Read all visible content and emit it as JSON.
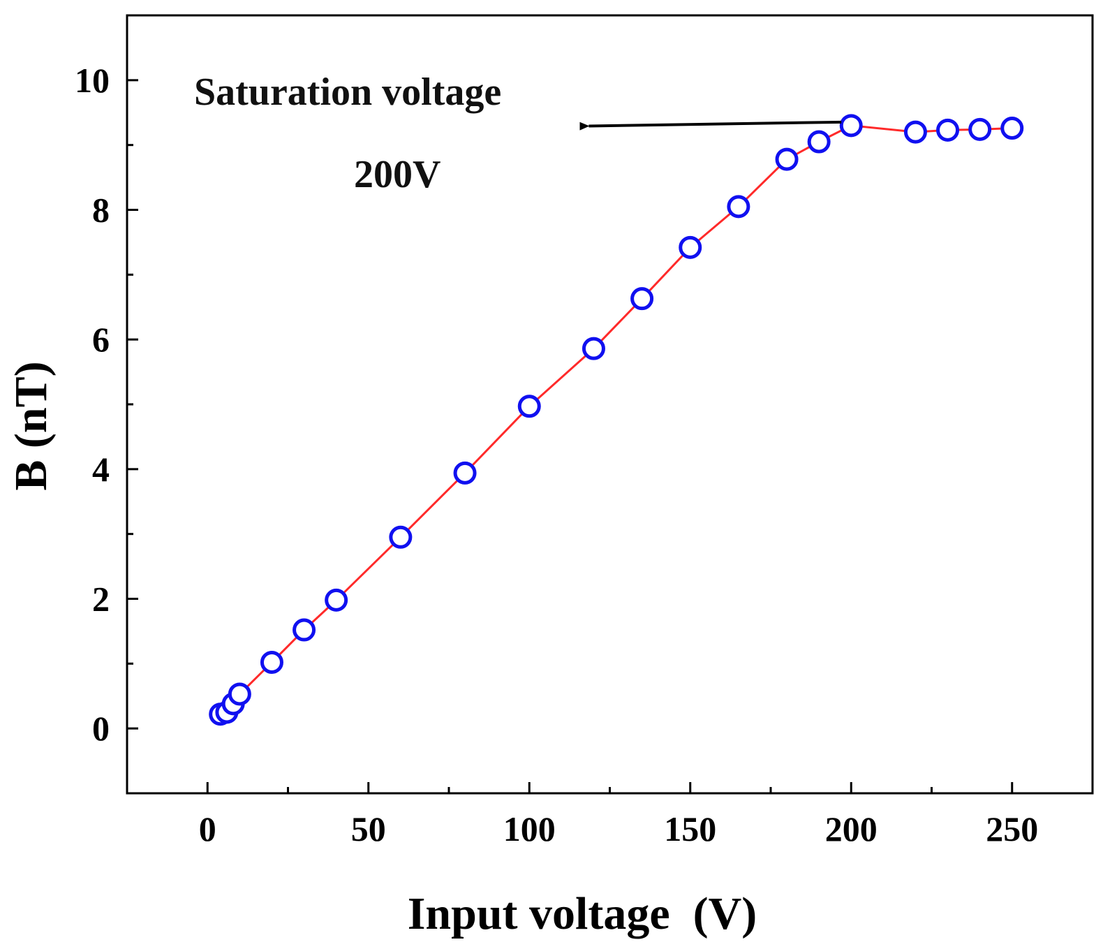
{
  "chart_data": {
    "type": "line",
    "title": "",
    "xlabel": "Input voltage  (V)",
    "ylabel": "B (nT)",
    "xlim": [
      -25,
      275
    ],
    "ylim": [
      -1,
      11
    ],
    "x_ticks": [
      0,
      50,
      100,
      150,
      200,
      250
    ],
    "x_ticks_minor": [
      25,
      75,
      125,
      175,
      225
    ],
    "y_ticks": [
      0,
      2,
      4,
      6,
      8,
      10
    ],
    "y_ticks_minor": [
      1,
      3,
      5,
      7,
      9
    ],
    "grid": false,
    "series": [
      {
        "name": "B",
        "line_color": "#ff2a2a",
        "marker_color": "#1010f0",
        "marker": "open-circle",
        "x": [
          4,
          6,
          8,
          10,
          20,
          30,
          40,
          60,
          80,
          100,
          120,
          135,
          150,
          165,
          180,
          190,
          200,
          220,
          230,
          240,
          250
        ],
        "y": [
          0.22,
          0.25,
          0.38,
          0.53,
          1.02,
          1.52,
          1.98,
          2.95,
          3.94,
          4.97,
          5.86,
          6.63,
          7.42,
          8.05,
          8.78,
          9.05,
          9.3,
          9.2,
          9.23,
          9.24,
          9.26
        ]
      }
    ],
    "annotations": {
      "label": "Saturation voltage",
      "value": "200V",
      "arrow_from": [
        200,
        9.3
      ],
      "arrow_to": [
        115,
        9.25
      ]
    }
  }
}
